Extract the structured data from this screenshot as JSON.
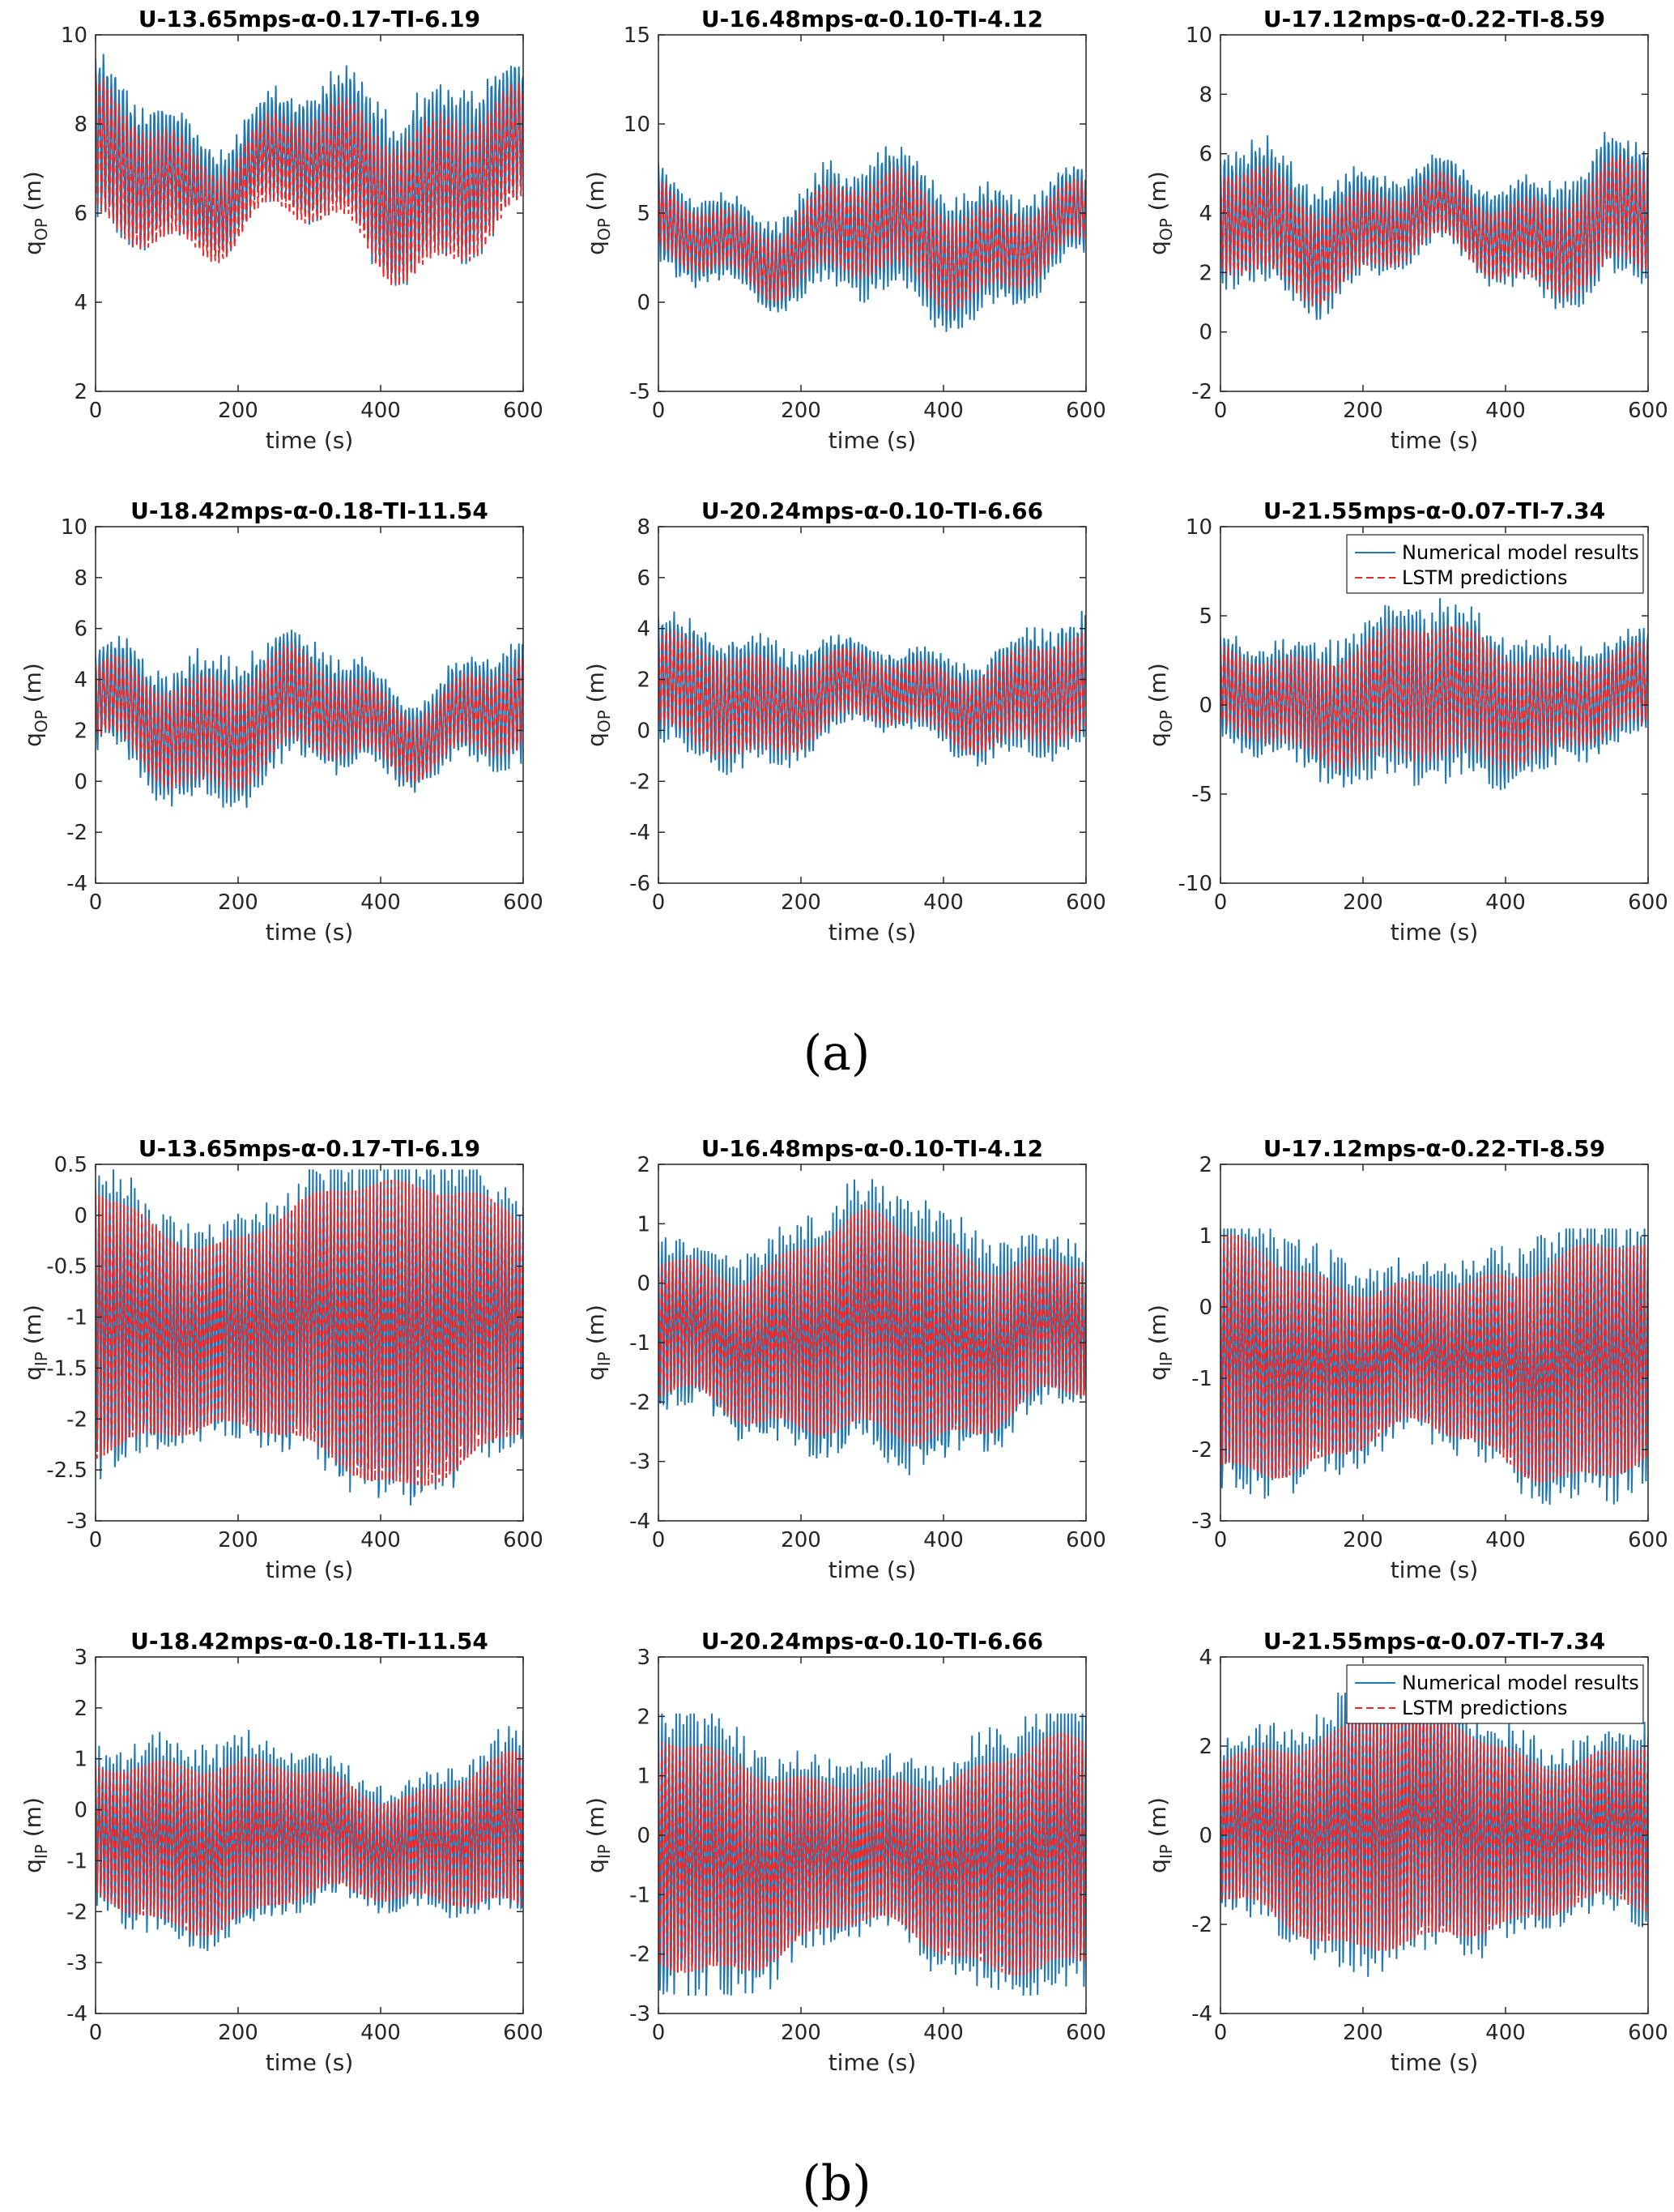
{
  "subfigure_labels": [
    "(a)",
    "(b)"
  ],
  "chart_data": [
    {
      "type": "line",
      "group": "a",
      "title": "U-13.65mps-α-0.17-TI-6.19",
      "xlabel": "time (s)",
      "ylabel": "q",
      "ylabel_sub": "OP",
      "ylabel_unit": " (m)",
      "xlim": [
        0,
        600
      ],
      "ylim": [
        2,
        10
      ],
      "xticks": [
        0,
        200,
        400,
        600
      ],
      "yticks": [
        2,
        4,
        6,
        8,
        10
      ],
      "legend": null,
      "series_params": {
        "mean": 7.0,
        "amp": 1.5,
        "env": 0.9,
        "pred_mean": 6.7,
        "pred_amp": 1.3,
        "period": 5.5,
        "min": 3.6,
        "max": 10.3,
        "seed": 11
      }
    },
    {
      "type": "line",
      "group": "a",
      "title": "U-16.48mps-α-0.10-TI-4.12",
      "xlabel": "time (s)",
      "ylabel": "q",
      "ylabel_sub": "OP",
      "ylabel_unit": " (m)",
      "xlim": [
        0,
        600
      ],
      "ylim": [
        -5,
        15
      ],
      "xticks": [
        0,
        200,
        400,
        600
      ],
      "yticks": [
        -5,
        0,
        5,
        10,
        15
      ],
      "legend": null,
      "series_params": {
        "mean": 3.5,
        "amp": 3.0,
        "env": 1.8,
        "pred_mean": 3.5,
        "pred_amp": 2.2,
        "period": 5.5,
        "min": -4.0,
        "max": 13.0,
        "seed": 23
      }
    },
    {
      "type": "line",
      "group": "a",
      "title": "U-17.12mps-α-0.22-TI-8.59",
      "xlabel": "time (s)",
      "ylabel": "q",
      "ylabel_sub": "OP",
      "ylabel_unit": " (m)",
      "xlim": [
        0,
        600
      ],
      "ylim": [
        -2,
        10
      ],
      "xticks": [
        0,
        200,
        400,
        600
      ],
      "yticks": [
        -2,
        0,
        2,
        4,
        6,
        8,
        10
      ],
      "legend": null,
      "series_params": {
        "mean": 3.6,
        "amp": 1.8,
        "env": 1.0,
        "pred_mean": 3.4,
        "pred_amp": 1.4,
        "period": 5.5,
        "min": -0.6,
        "max": 8.6,
        "seed": 37
      }
    },
    {
      "type": "line",
      "group": "a",
      "title": "U-18.42mps-α-0.18-TI-11.54",
      "xlabel": "time (s)",
      "ylabel": "q",
      "ylabel_sub": "OP",
      "ylabel_unit": " (m)",
      "xlim": [
        0,
        600
      ],
      "ylim": [
        -4,
        10
      ],
      "xticks": [
        0,
        200,
        400,
        600
      ],
      "yticks": [
        -4,
        -2,
        0,
        2,
        4,
        6,
        8,
        10
      ],
      "legend": null,
      "series_params": {
        "mean": 2.5,
        "amp": 2.2,
        "env": 1.2,
        "pred_mean": 2.4,
        "pred_amp": 1.7,
        "period": 5.5,
        "min": -2.9,
        "max": 8.6,
        "seed": 41
      }
    },
    {
      "type": "line",
      "group": "a",
      "title": "U-20.24mps-α-0.10-TI-6.66",
      "xlabel": "time (s)",
      "ylabel": "q",
      "ylabel_sub": "OP",
      "ylabel_unit": " (m)",
      "xlim": [
        0,
        600
      ],
      "ylim": [
        -6,
        8
      ],
      "xticks": [
        0,
        200,
        400,
        600
      ],
      "yticks": [
        -6,
        -4,
        -2,
        0,
        2,
        4,
        6,
        8
      ],
      "legend": null,
      "series_params": {
        "mean": 1.4,
        "amp": 2.0,
        "env": 0.8,
        "pred_mean": 1.3,
        "pred_amp": 1.6,
        "period": 5.5,
        "min": -4.0,
        "max": 6.4,
        "seed": 53
      }
    },
    {
      "type": "line",
      "group": "a",
      "title": "U-21.55mps-α-0.07-TI-7.34",
      "xlabel": "time (s)",
      "ylabel": "q",
      "ylabel_sub": "OP",
      "ylabel_unit": " (m)",
      "xlim": [
        0,
        600
      ],
      "ylim": [
        -10,
        10
      ],
      "xticks": [
        0,
        200,
        400,
        600
      ],
      "yticks": [
        -10,
        -5,
        0,
        5,
        10
      ],
      "legend": [
        "Numerical model results",
        "LSTM predictions"
      ],
      "series_params": {
        "mean": 0.3,
        "amp": 3.8,
        "env": 1.0,
        "pred_mean": 0.3,
        "pred_amp": 3.0,
        "period": 5.5,
        "min": -8.0,
        "max": 7.0,
        "seed": 67
      }
    },
    {
      "type": "line",
      "group": "b",
      "title": "U-13.65mps-α-0.17-TI-6.19",
      "xlabel": "time (s)",
      "ylabel": "q",
      "ylabel_sub": "IP",
      "ylabel_unit": " (m)",
      "xlim": [
        0,
        600
      ],
      "ylim": [
        -3,
        0.5
      ],
      "xticks": [
        0,
        200,
        400,
        600
      ],
      "yticks": [
        -3,
        -2.5,
        -2,
        -1.5,
        -1,
        -0.5,
        0,
        0.5
      ],
      "ytick_labels": [
        "-3",
        "-2.5",
        "-2",
        "-1.5",
        "-1",
        "-0.5",
        "0",
        "0.5"
      ],
      "legend": null,
      "series_params": {
        "mean": -1.15,
        "amp": 1.35,
        "env": 0.12,
        "pred_mean": -1.15,
        "pred_amp": 1.25,
        "period": 5.0,
        "min": -2.85,
        "max": 0.45,
        "seed": 71
      }
    },
    {
      "type": "line",
      "group": "b",
      "title": "U-16.48mps-α-0.10-TI-4.12",
      "xlabel": "time (s)",
      "ylabel": "q",
      "ylabel_sub": "IP",
      "ylabel_unit": " (m)",
      "xlim": [
        0,
        600
      ],
      "ylim": [
        -4,
        2
      ],
      "xticks": [
        0,
        200,
        400,
        600
      ],
      "yticks": [
        -4,
        -3,
        -2,
        -1,
        0,
        1,
        2
      ],
      "legend": null,
      "series_params": {
        "mean": -0.9,
        "amp": 1.8,
        "env": 0.35,
        "pred_mean": -0.9,
        "pred_amp": 1.5,
        "period": 5.0,
        "min": -3.4,
        "max": 1.95,
        "seed": 83
      }
    },
    {
      "type": "line",
      "group": "b",
      "title": "U-17.12mps-α-0.22-TI-8.59",
      "xlabel": "time (s)",
      "ylabel": "q",
      "ylabel_sub": "IP",
      "ylabel_unit": " (m)",
      "xlim": [
        0,
        600
      ],
      "ylim": [
        -3,
        2
      ],
      "xticks": [
        0,
        200,
        400,
        600
      ],
      "yticks": [
        -3,
        -2,
        -1,
        0,
        1,
        2
      ],
      "legend": null,
      "series_params": {
        "mean": -0.8,
        "amp": 1.55,
        "env": 0.22,
        "pred_mean": -0.8,
        "pred_amp": 1.35,
        "period": 5.0,
        "min": -2.9,
        "max": 1.1,
        "seed": 97
      }
    },
    {
      "type": "line",
      "group": "b",
      "title": "U-18.42mps-α-0.18-TI-11.54",
      "xlabel": "time (s)",
      "ylabel": "q",
      "ylabel_sub": "IP",
      "ylabel_unit": " (m)",
      "xlim": [
        0,
        600
      ],
      "ylim": [
        -4,
        3
      ],
      "xticks": [
        0,
        200,
        400,
        600
      ],
      "yticks": [
        -4,
        -3,
        -2,
        -1,
        0,
        1,
        2,
        3
      ],
      "legend": null,
      "series_params": {
        "mean": -0.6,
        "amp": 1.55,
        "env": 0.3,
        "pred_mean": -0.6,
        "pred_amp": 1.35,
        "period": 5.0,
        "min": -3.0,
        "max": 2.1,
        "seed": 101
      }
    },
    {
      "type": "line",
      "group": "b",
      "title": "U-20.24mps-α-0.10-TI-6.66",
      "xlabel": "time (s)",
      "ylabel": "q",
      "ylabel_sub": "IP",
      "ylabel_unit": " (m)",
      "xlim": [
        0,
        600
      ],
      "ylim": [
        -3,
        3
      ],
      "xticks": [
        0,
        200,
        400,
        600
      ],
      "yticks": [
        -3,
        -2,
        -1,
        0,
        1,
        2,
        3
      ],
      "legend": null,
      "series_params": {
        "mean": -0.4,
        "amp": 1.85,
        "env": 0.25,
        "pred_mean": -0.4,
        "pred_amp": 1.6,
        "period": 5.0,
        "min": -2.7,
        "max": 2.05,
        "seed": 113
      }
    },
    {
      "type": "line",
      "group": "b",
      "title": "U-21.55mps-α-0.07-TI-7.34",
      "xlabel": "time (s)",
      "ylabel": "q",
      "ylabel_sub": "IP",
      "ylabel_unit": " (m)",
      "xlim": [
        0,
        600
      ],
      "ylim": [
        -4,
        4
      ],
      "xticks": [
        0,
        200,
        400,
        600
      ],
      "yticks": [
        -4,
        -2,
        0,
        2,
        4
      ],
      "legend": [
        "Numerical model results",
        "LSTM predictions"
      ],
      "series_params": {
        "mean": 0.1,
        "amp": 2.5,
        "env": 0.3,
        "pred_mean": 0.1,
        "pred_amp": 2.2,
        "period": 5.0,
        "min": -3.5,
        "max": 3.2,
        "seed": 127
      }
    }
  ],
  "colors": {
    "numerical": "#1f77b4",
    "lstm": "#e8292b",
    "axis": "#262626",
    "background": "#ffffff"
  }
}
